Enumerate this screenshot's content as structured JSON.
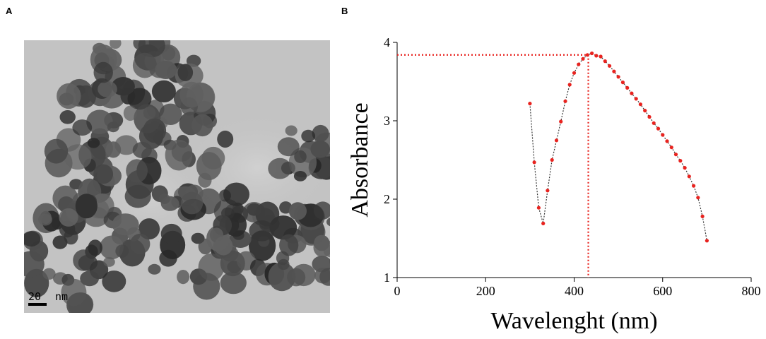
{
  "panels": {
    "a_label": "A",
    "b_label": "B"
  },
  "micrograph": {
    "scale_bar_value": "20",
    "scale_bar_unit": "nm",
    "background_color": "#c3c3c3",
    "particle_color": "#3a3a3a"
  },
  "chart_data": {
    "type": "scatter",
    "title": "",
    "xlabel": "Wavelenght (nm)",
    "ylabel": "Absorbance",
    "xlim": [
      0,
      800
    ],
    "ylim": [
      1,
      4
    ],
    "xticks": [
      "0",
      "200",
      "400",
      "600",
      "800"
    ],
    "yticks": [
      "1",
      "2",
      "3",
      "4"
    ],
    "marker_color": "#e8231f",
    "line_color": "#333333",
    "line_style": "dotted",
    "grid": false,
    "series": [
      {
        "x": [
          300,
          310,
          320,
          330,
          340,
          350,
          360,
          370,
          380,
          390,
          400,
          410,
          420,
          430,
          440,
          450,
          460,
          470,
          480,
          490,
          500,
          510,
          520,
          530,
          540,
          550,
          560,
          570,
          580,
          590,
          600,
          610,
          620,
          630,
          640,
          650,
          660,
          670,
          680,
          690,
          700
        ],
        "y": [
          3.22,
          2.47,
          1.89,
          1.69,
          2.11,
          2.5,
          2.75,
          2.99,
          3.25,
          3.46,
          3.61,
          3.72,
          3.79,
          3.84,
          3.86,
          3.83,
          3.82,
          3.76,
          3.7,
          3.63,
          3.56,
          3.49,
          3.42,
          3.35,
          3.28,
          3.21,
          3.13,
          3.05,
          2.97,
          2.9,
          2.82,
          2.74,
          2.66,
          2.57,
          2.49,
          2.4,
          2.29,
          2.17,
          2.02,
          1.78,
          1.47
        ]
      }
    ],
    "peak_marker": {
      "x": 432,
      "y": 3.84,
      "color": "#e8231f"
    }
  }
}
